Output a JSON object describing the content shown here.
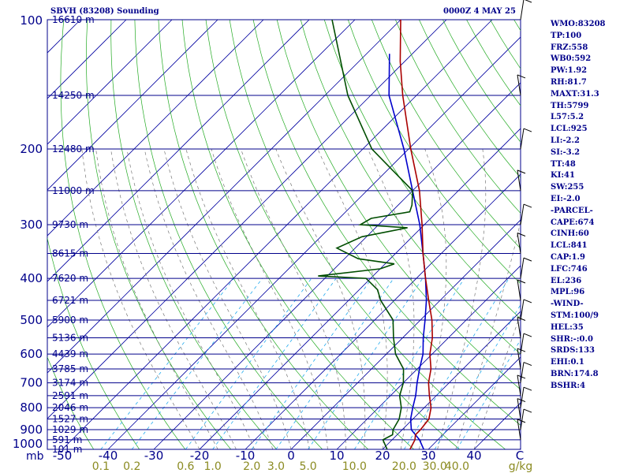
{
  "header": {
    "station": "SBVH (83208) Sounding",
    "time": "0000Z  4 MAY 25"
  },
  "stats": [
    "WMO:83208",
    "TP:100",
    "FRZ:558",
    "WB0:592",
    "PW:1.92",
    "RH:81.7",
    "MAXT:31.3",
    "TH:5799",
    "L57:5.2",
    "LCL:925",
    "LI:-2.2",
    "SI:-3.2",
    "TT:48",
    "KI:41",
    "SW:255",
    "EI:-2.0",
    "-PARCEL-",
    "CAPE:674",
    "CINH:60",
    "LCL:841",
    "CAP:1.9",
    "LFC:746",
    "EL:236",
    "MPL:96",
    "-WIND-",
    "STM:100/9",
    "HEL:35",
    "SHR:-:0.0",
    "SRDS:133",
    "EHI:0.1",
    "BRN:174.8",
    "BSHR:4"
  ],
  "colors": {
    "isobar": "#00008b",
    "isotherm": "#0000a0",
    "dry_adiabat": "#22aa22",
    "moist_adiabat": "#777777",
    "mixing_ratio": "#22aaee",
    "temperature": "#aa0000",
    "dewpoint": "#004d00",
    "parcel": "#0000cc"
  },
  "chart_data": {
    "type": "skew-t",
    "pressure_labels": [
      "100",
      "200",
      "300",
      "400",
      "500",
      "600",
      "700",
      "800",
      "900",
      "1000"
    ],
    "pressure_levels": [
      100,
      200,
      300,
      400,
      500,
      600,
      700,
      800,
      900,
      1000
    ],
    "heights": [
      {
        "p": 100,
        "label": "16610 m"
      },
      {
        "p": 150,
        "label": "14250 m"
      },
      {
        "p": 200,
        "label": "12480 m"
      },
      {
        "p": 250,
        "label": "11000 m"
      },
      {
        "p": 300,
        "label": "9730 m"
      },
      {
        "p": 350,
        "label": "8615 m"
      },
      {
        "p": 400,
        "label": "7620 m"
      },
      {
        "p": 450,
        "label": "6721 m"
      },
      {
        "p": 500,
        "label": "5900 m"
      },
      {
        "p": 550,
        "label": "5136 m"
      },
      {
        "p": 600,
        "label": "4439 m"
      },
      {
        "p": 650,
        "label": "3785 m"
      },
      {
        "p": 700,
        "label": "3174 m"
      },
      {
        "p": 750,
        "label": "2591 m"
      },
      {
        "p": 800,
        "label": "2046 m"
      },
      {
        "p": 850,
        "label": "1527 m"
      },
      {
        "p": 900,
        "label": "1029 m"
      },
      {
        "p": 950,
        "label": "591 m"
      },
      {
        "p": 1000,
        "label": "101 m"
      }
    ],
    "x_unit_label": "mb",
    "temp_ticks": [
      "-50",
      "-40",
      "-30",
      "-20",
      "-10",
      "0",
      "10",
      "20",
      "30",
      "40",
      "C"
    ],
    "temp_values": [
      -50,
      -40,
      -30,
      -20,
      -10,
      0,
      10,
      20,
      30,
      40
    ],
    "mixing_ratio_labels": [
      "0.1",
      "0.2",
      "0.6",
      "1.0",
      "2.0",
      "3.0",
      "5.0",
      "10.0",
      "20.0",
      "30.0",
      "40.0",
      "g/kg"
    ],
    "mixing_ratios": [
      0.1,
      0.2,
      0.6,
      1.0,
      2.0,
      3.0,
      5.0,
      10.0,
      20.0,
      30.0,
      40.0
    ],
    "temperature": [
      {
        "p": 1000,
        "t": 26
      },
      {
        "p": 950,
        "t": 25
      },
      {
        "p": 925,
        "t": 24
      },
      {
        "p": 900,
        "t": 24
      },
      {
        "p": 850,
        "t": 23.5
      },
      {
        "p": 800,
        "t": 21.5
      },
      {
        "p": 750,
        "t": 18.5
      },
      {
        "p": 700,
        "t": 15.5
      },
      {
        "p": 650,
        "t": 13
      },
      {
        "p": 600,
        "t": 9.5
      },
      {
        "p": 550,
        "t": 6.5
      },
      {
        "p": 500,
        "t": 2.5
      },
      {
        "p": 450,
        "t": -2.5
      },
      {
        "p": 400,
        "t": -8
      },
      {
        "p": 350,
        "t": -14
      },
      {
        "p": 300,
        "t": -20.5
      },
      {
        "p": 250,
        "t": -28.5
      },
      {
        "p": 200,
        "t": -39.5
      },
      {
        "p": 150,
        "t": -53
      },
      {
        "p": 125,
        "t": -61
      },
      {
        "p": 100,
        "t": -70
      }
    ],
    "dewpoint": [
      {
        "p": 1000,
        "t": 21
      },
      {
        "p": 950,
        "t": 18
      },
      {
        "p": 925,
        "t": 19
      },
      {
        "p": 900,
        "t": 18
      },
      {
        "p": 850,
        "t": 17
      },
      {
        "p": 800,
        "t": 15
      },
      {
        "p": 750,
        "t": 12
      },
      {
        "p": 700,
        "t": 10
      },
      {
        "p": 650,
        "t": 7
      },
      {
        "p": 600,
        "t": 2
      },
      {
        "p": 550,
        "t": -2
      },
      {
        "p": 500,
        "t": -6
      },
      {
        "p": 450,
        "t": -13
      },
      {
        "p": 425,
        "t": -16
      },
      {
        "p": 400,
        "t": -21
      },
      {
        "p": 395,
        "t": -32
      },
      {
        "p": 380,
        "t": -20
      },
      {
        "p": 370,
        "t": -18
      },
      {
        "p": 360,
        "t": -27
      },
      {
        "p": 340,
        "t": -34
      },
      {
        "p": 320,
        "t": -31
      },
      {
        "p": 305,
        "t": -23
      },
      {
        "p": 300,
        "t": -34
      },
      {
        "p": 290,
        "t": -33
      },
      {
        "p": 280,
        "t": -26
      },
      {
        "p": 270,
        "t": -27
      },
      {
        "p": 250,
        "t": -30
      },
      {
        "p": 200,
        "t": -48
      },
      {
        "p": 150,
        "t": -65
      },
      {
        "p": 100,
        "t": -85
      }
    ],
    "parcel": [
      {
        "p": 1000,
        "t": 29
      },
      {
        "p": 950,
        "t": 26
      },
      {
        "p": 900,
        "t": 22
      },
      {
        "p": 850,
        "t": 19.5
      },
      {
        "p": 800,
        "t": 17.5
      },
      {
        "p": 750,
        "t": 15.5
      },
      {
        "p": 700,
        "t": 13
      },
      {
        "p": 650,
        "t": 10.5
      },
      {
        "p": 600,
        "t": 8
      },
      {
        "p": 550,
        "t": 4.5
      },
      {
        "p": 500,
        "t": 1
      },
      {
        "p": 450,
        "t": -3
      },
      {
        "p": 400,
        "t": -8
      },
      {
        "p": 350,
        "t": -14
      },
      {
        "p": 300,
        "t": -21
      },
      {
        "p": 250,
        "t": -30
      },
      {
        "p": 200,
        "t": -41
      },
      {
        "p": 150,
        "t": -56
      },
      {
        "p": 120,
        "t": -65
      }
    ]
  }
}
